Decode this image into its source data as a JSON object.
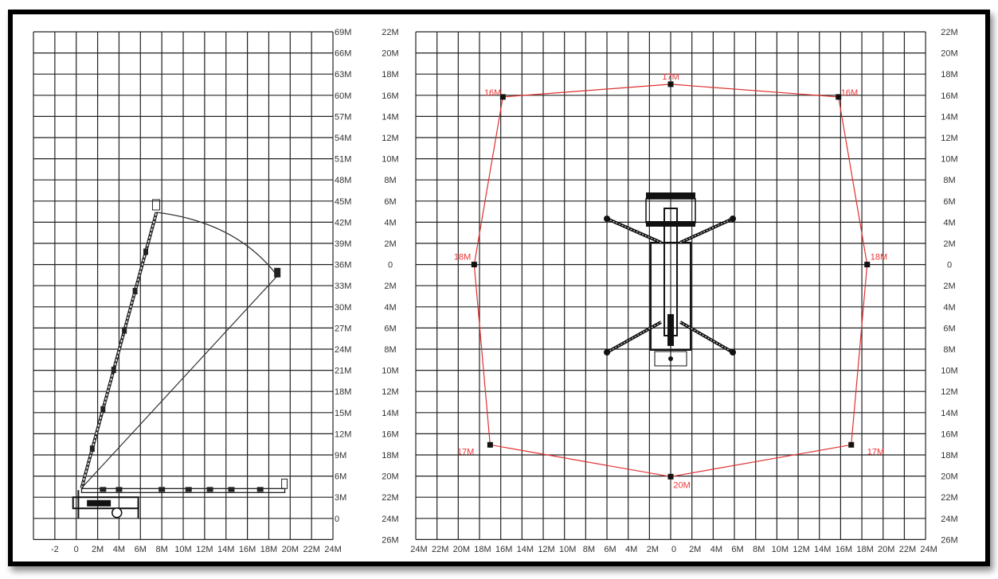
{
  "colors": {
    "grid": "#222222",
    "range": "#e03030",
    "frame": "#000000"
  },
  "side_view": {
    "x_labels": [
      "-2",
      "0",
      "2M",
      "4M",
      "6M",
      "8M",
      "10M",
      "12M",
      "14M",
      "16M",
      "18M",
      "20M",
      "22M",
      "24M"
    ],
    "y_labels": [
      "69M",
      "66M",
      "63M",
      "60M",
      "57M",
      "54M",
      "51M",
      "48M",
      "45M",
      "42M",
      "39M",
      "36M",
      "33M",
      "30M",
      "27M",
      "24M",
      "21M",
      "18M",
      "15M",
      "12M",
      "9M",
      "6M",
      "3M",
      "0"
    ],
    "boom_pivot_m": [
      0.5,
      4.3
    ],
    "boom_tip_vertical_m": [
      7.5,
      43.4
    ],
    "boom_tip_reach_m": [
      18.8,
      34.4
    ],
    "boom_stowed_end_m": [
      19.5,
      4.0
    ]
  },
  "top_view": {
    "left_y_labels": [
      "22M",
      "20M",
      "18M",
      "16M",
      "14M",
      "12M",
      "10M",
      "8M",
      "6M",
      "4M",
      "2M",
      "0",
      "2M",
      "4M",
      "6M",
      "8M",
      "10M",
      "12M",
      "14M",
      "16M",
      "18M",
      "20M",
      "22M",
      "24M",
      "26M"
    ],
    "right_y_labels": [
      "22M",
      "20M",
      "18M",
      "16M",
      "14M",
      "12M",
      "10M",
      "8M",
      "6M",
      "4M",
      "2M",
      "0",
      "2M",
      "4M",
      "6M",
      "8M",
      "10M",
      "12M",
      "14M",
      "16M",
      "18M",
      "20M",
      "22M",
      "24M",
      "26M"
    ],
    "x_labels": [
      "24M",
      "22M",
      "20M",
      "18M",
      "16M",
      "14M",
      "12M",
      "10M",
      "8M",
      "6M",
      "4M",
      "2M",
      "0",
      "2M",
      "4M",
      "6M",
      "8M",
      "10M",
      "12M",
      "14M",
      "16M",
      "18M",
      "20M",
      "22M",
      "24M"
    ],
    "range_points": [
      {
        "label": "17M",
        "x": 0,
        "y": 17
      },
      {
        "label": "16M",
        "x": 15.8,
        "y": 15.8
      },
      {
        "label": "18M",
        "x": 18.5,
        "y": 0
      },
      {
        "label": "17M",
        "x": 17,
        "y": -17
      },
      {
        "label": "20M",
        "x": 0,
        "y": -20
      },
      {
        "label": "17M",
        "x": -17,
        "y": -17
      },
      {
        "label": "18M",
        "x": -18.5,
        "y": 0
      },
      {
        "label": "16M",
        "x": -15.8,
        "y": 15.8
      }
    ]
  }
}
